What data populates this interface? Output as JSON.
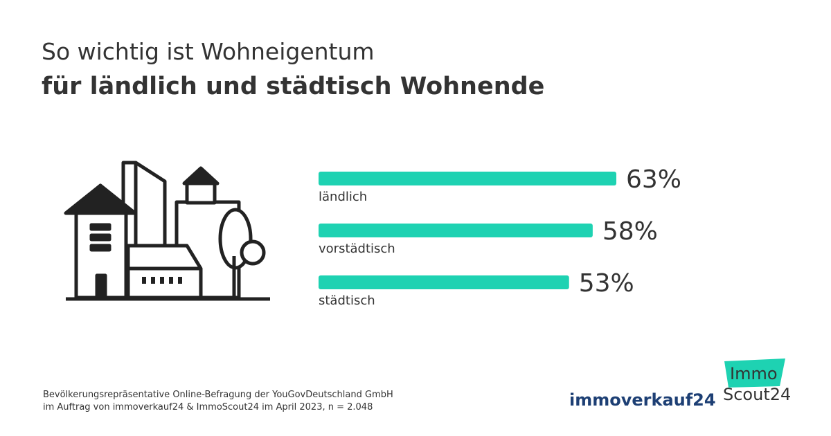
{
  "chart_data": {
    "type": "bar",
    "title": "So wichtig ist Wohneigentum",
    "subtitle": "für ländlich und städtisch Wohnende",
    "categories": [
      "ländlich",
      "vorstädtisch",
      "städtisch"
    ],
    "values": [
      63,
      58,
      53
    ],
    "value_labels": [
      "63%",
      "58%",
      "53%"
    ],
    "color": "#1ed2b2",
    "orientation": "horizontal"
  },
  "footer": {
    "source": [
      "Bevölkerungsrepräsentative Online-Befragung der YouGovDeutschland GmbH",
      "im Auftrag von immoverkauf24 & ImmoScout24 im April 2023, n = 2.048"
    ],
    "logos": [
      "immoverkauf24",
      "Immo",
      "Scout24"
    ]
  }
}
